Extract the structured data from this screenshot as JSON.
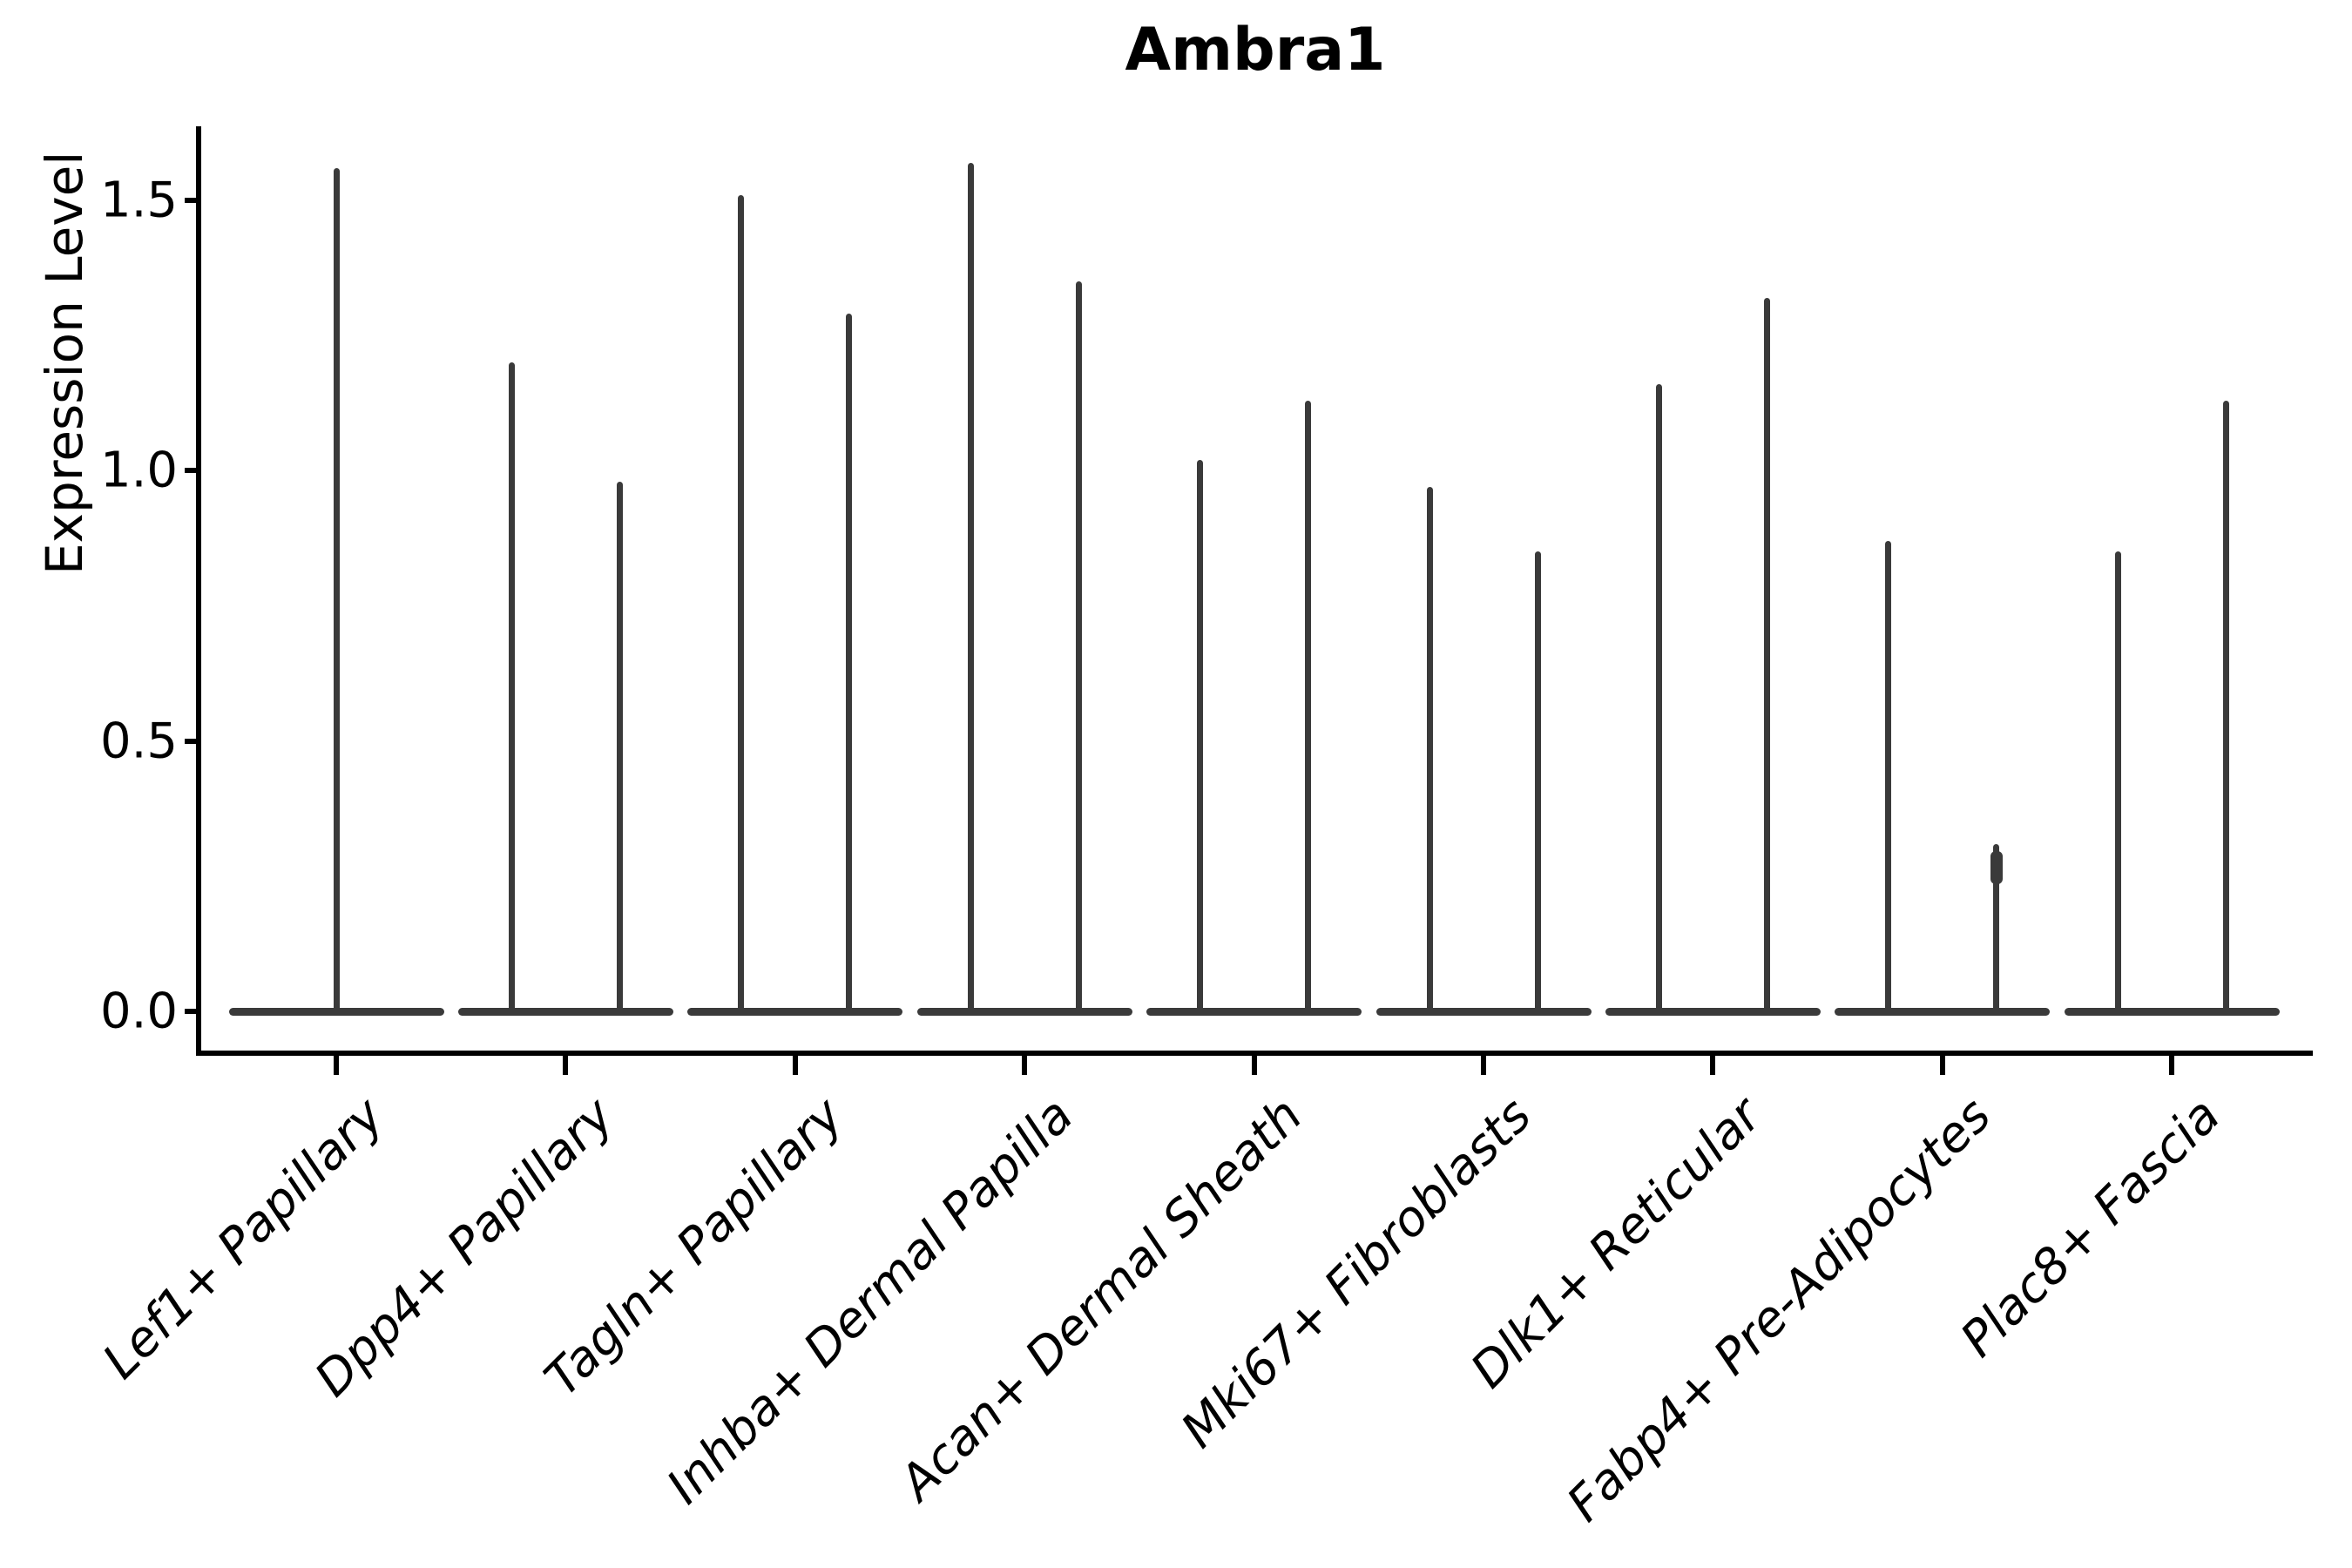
{
  "title": "Ambra1",
  "y_axis": {
    "label": "Expression Level",
    "tick_labels": [
      "0.0",
      "0.5",
      "1.0",
      "1.5"
    ],
    "tick_values": [
      0.0,
      0.5,
      1.0,
      1.5
    ]
  },
  "colors": {
    "violin": "#3a3a3a",
    "axis": "#000000",
    "text": "#000000",
    "background": "#ffffff"
  },
  "chart_data": {
    "type": "violin",
    "title": "Ambra1",
    "xlabel": "",
    "ylabel": "Expression Level",
    "ylim": [
      0,
      1.64
    ],
    "yticks": [
      0.0,
      0.5,
      1.0,
      1.5
    ],
    "ytick_labels": [
      "0.0",
      "0.5",
      "1.0",
      "1.5"
    ],
    "grid": false,
    "legend": false,
    "shape_note": "Each violin is flat at expression 0 (wide horizontal base) with a thin vertical spike rising to the maximum expression value; categories with two violins show two side-by-side spikes on one shared base line.",
    "baseline_value": 0.0,
    "categories": [
      "Lef1+ Papillary",
      "Dpp4+ Papillary",
      "Tagln+ Papillary",
      "Inhba+ Dermal Papilla",
      "Acan+ Dermal Sheath",
      "Mki67+ Fibroblasts",
      "Dlk1+ Reticular",
      "Fabp4+ Pre-Adipocytes",
      "Plac8+ Fascia"
    ],
    "series": [
      {
        "category": "Lef1+ Papillary",
        "violin_maxima": [
          1.56
        ]
      },
      {
        "category": "Dpp4+ Papillary",
        "violin_maxima": [
          1.2,
          0.98
        ]
      },
      {
        "category": "Tagln+ Papillary",
        "violin_maxima": [
          1.51,
          1.29
        ]
      },
      {
        "category": "Inhba+ Dermal Papilla",
        "violin_maxima": [
          1.57,
          1.35
        ]
      },
      {
        "category": "Acan+ Dermal Sheath",
        "violin_maxima": [
          1.02,
          1.13
        ]
      },
      {
        "category": "Mki67+ Fibroblasts",
        "violin_maxima": [
          0.97,
          0.85
        ]
      },
      {
        "category": "Dlk1+ Reticular",
        "violin_maxima": [
          1.16,
          1.32
        ]
      },
      {
        "category": "Fabp4+ Pre-Adipocytes",
        "violin_maxima": [
          0.87,
          0.31
        ]
      },
      {
        "category": "Plac8+ Fascia",
        "violin_maxima": [
          0.85,
          1.13
        ]
      }
    ],
    "point_marker": {
      "category": "Fabp4+ Pre-Adipocytes",
      "violin_index": 1,
      "value": 0.29
    }
  }
}
